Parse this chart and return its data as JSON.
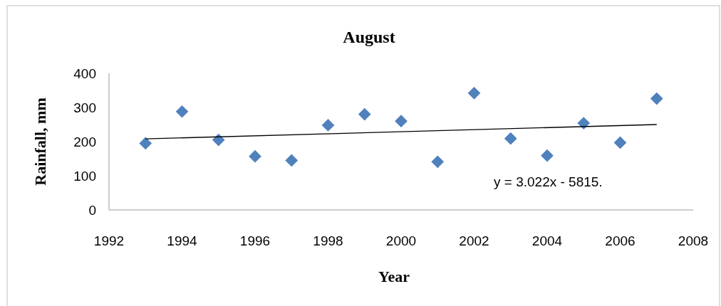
{
  "chart_data": {
    "type": "scatter",
    "title": "August",
    "xlabel": "Year",
    "ylabel": "Rainfall, mm",
    "x": [
      1993,
      1994,
      1995,
      1996,
      1997,
      1998,
      1999,
      2000,
      2001,
      2002,
      2003,
      2004,
      2005,
      2006,
      2007
    ],
    "series": [
      {
        "color": "#4f81bd",
        "marker": "diamond",
        "values": [
          195,
          288,
          205,
          157,
          145,
          248,
          280,
          260,
          141,
          342,
          209,
          159,
          254,
          197,
          326
        ]
      },
      {
        "type": "line",
        "color": "#000000",
        "x": [
          1993,
          2007
        ],
        "values": [
          208,
          250
        ],
        "marker": "none",
        "line_style": "solid"
      }
    ],
    "annotations": [
      "y = 3.022x - 5815."
    ],
    "xlim": [
      1992,
      2008
    ],
    "xticks": [
      1992,
      1994,
      1996,
      1998,
      2000,
      2002,
      2004,
      2006,
      2008
    ],
    "ylim": [
      0,
      400
    ],
    "yticks": [
      0,
      100,
      200,
      300,
      400
    ],
    "grid": false
  }
}
